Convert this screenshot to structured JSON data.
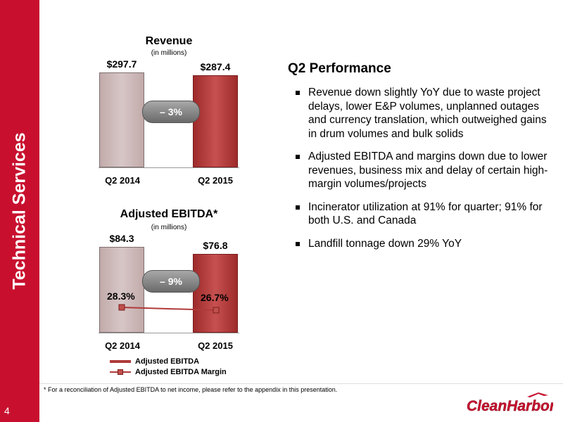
{
  "sidebar": {
    "title": "Technical Services",
    "page_number": "4"
  },
  "revenue_chart": {
    "title": "Revenue",
    "subtitle": "(in millions)",
    "change_label": "– 3%"
  },
  "ebitda_chart": {
    "title": "Adjusted EBITDA*",
    "subtitle": "(in millions)",
    "change_label": "– 9%",
    "legend": [
      "Adjusted EBITDA",
      "Adjusted EBITDA Margin"
    ]
  },
  "chart_data": [
    {
      "type": "bar",
      "title": "Revenue",
      "subtitle": "(in millions)",
      "categories": [
        "Q2 2014",
        "Q2 2015"
      ],
      "values": [
        297.7,
        287.4
      ],
      "value_labels": [
        "$297.7",
        "$287.4"
      ],
      "annotation": "– 3%",
      "colors": [
        "#c9b4b4",
        "#b03a3a"
      ],
      "ylim": [
        0,
        330
      ]
    },
    {
      "type": "bar",
      "title": "Adjusted EBITDA*",
      "subtitle": "(in millions)",
      "categories": [
        "Q2 2014",
        "Q2 2015"
      ],
      "series": [
        {
          "name": "Adjusted EBITDA",
          "type": "bar",
          "values": [
            84.3,
            76.8
          ],
          "labels": [
            "$84.3",
            "$76.8"
          ]
        },
        {
          "name": "Adjusted EBITDA Margin",
          "type": "line",
          "values": [
            28.3,
            26.7
          ],
          "labels": [
            "28.3%",
            "26.7%"
          ]
        }
      ],
      "annotation": "– 9%",
      "colors": [
        "#c9b4b4",
        "#b03a3a"
      ],
      "ylim": [
        0,
        95
      ],
      "legend_position": "bottom"
    }
  ],
  "performance": {
    "title": "Q2 Performance",
    "bullets": [
      "Revenue down slightly YoY due to waste project delays, lower E&P volumes, unplanned outages and currency translation, which outweighed gains in drum volumes and bulk solids",
      "Adjusted EBITDA and margins down due to lower revenues, business mix and delay of certain high-margin volumes/projects",
      "Incinerator utilization at 91% for quarter; 91% for both U.S. and Canada",
      "Landfill tonnage down 29% YoY"
    ]
  },
  "footnote": "* For a reconciliation of Adjusted EBITDA to net  income, please refer to the appendix in this presentation.",
  "logo_text": "CleanHarbors",
  "colors": {
    "brand_red": "#c8102e",
    "bar_2014": "#c9b4b4",
    "bar_2015": "#b03a3a"
  }
}
